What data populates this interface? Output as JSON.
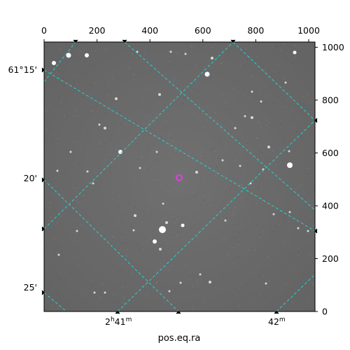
{
  "axes": {
    "top_ticks": [
      "0",
      "200",
      "400",
      "600",
      "800",
      "1000"
    ],
    "right_ticks": [
      "0",
      "200",
      "400",
      "600",
      "800",
      "1000"
    ],
    "left_ticks": [
      "61°15'",
      "20'",
      "25'"
    ],
    "bottom_ticks": [
      {
        "main": "2",
        "sup1": "h",
        "mid": "41",
        "sup2": "m"
      },
      {
        "main": "42",
        "sup1": "m",
        "mid": "",
        "sup2": ""
      }
    ],
    "xlabel": "pos.eq.ra"
  },
  "image": {
    "background_color": "#6b6b6b",
    "grid_color": "#22d3d3",
    "marker_color": "#e040e0"
  }
}
